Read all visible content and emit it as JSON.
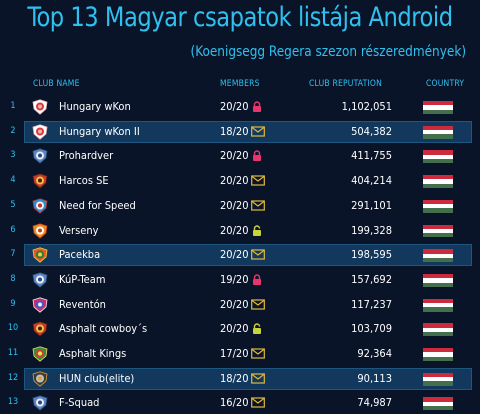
{
  "title": "Top 13 Magyar csapatok listája Android",
  "subtitle": "(Koenigsegg Regera szezon részeredmények)",
  "headers": {
    "club": "CLUB NAME",
    "members": "MEMBERS",
    "reputation": "CLUB REPUTATION",
    "country": "COUNTRY"
  },
  "colors": {
    "accent": "#2fc0f0",
    "background": "#0a1428",
    "highlight_row": "#12385e",
    "lock": "#e8356b",
    "lock_open": "#c8d43a",
    "invite": "#e2b93b",
    "flag_red": "#cd2a3e",
    "flag_white": "#ffffff",
    "flag_green": "#436f4d"
  },
  "rows": [
    {
      "rank": "1",
      "name": "Hungary wKon",
      "members": "20/20",
      "access": "lock-icon",
      "reputation": "1,102,051",
      "highlight": false,
      "logo": "club-logo-red"
    },
    {
      "rank": "2",
      "name": "Hungary wKon II",
      "members": "18/20",
      "access": "envelope-icon",
      "reputation": "504,382",
      "highlight": true,
      "logo": "club-logo-red"
    },
    {
      "rank": "3",
      "name": "Prohardver",
      "members": "20/20",
      "access": "lock-icon",
      "reputation": "411,755",
      "highlight": false,
      "logo": "club-logo-wolf"
    },
    {
      "rank": "4",
      "name": "Harcos SE",
      "members": "20/20",
      "access": "envelope-icon",
      "reputation": "404,214",
      "highlight": false,
      "logo": "club-logo-skull"
    },
    {
      "rank": "5",
      "name": "Need for Speed",
      "members": "20/20",
      "access": "envelope-icon",
      "reputation": "291,101",
      "highlight": false,
      "logo": "club-logo-shield"
    },
    {
      "rank": "6",
      "name": "Verseny",
      "members": "20/20",
      "access": "lock-open-icon",
      "reputation": "199,328",
      "highlight": false,
      "logo": "club-logo-flag"
    },
    {
      "rank": "7",
      "name": "Pacekba",
      "members": "20/20",
      "access": "envelope-icon",
      "reputation": "198,595",
      "highlight": true,
      "logo": "club-logo-fire"
    },
    {
      "rank": "8",
      "name": "KúP-Team",
      "members": "19/20",
      "access": "lock-icon",
      "reputation": "157,692",
      "highlight": false,
      "logo": "club-logo-wolf"
    },
    {
      "rank": "9",
      "name": "Reventón",
      "members": "20/20",
      "access": "envelope-icon",
      "reputation": "117,237",
      "highlight": false,
      "logo": "club-logo-speed"
    },
    {
      "rank": "10",
      "name": "Asphalt cowboy´s",
      "members": "20/20",
      "access": "lock-open-icon",
      "reputation": "103,709",
      "highlight": false,
      "logo": "club-logo-skull"
    },
    {
      "rank": "11",
      "name": "Asphalt Kings",
      "members": "17/20",
      "access": "envelope-icon",
      "reputation": "92,364",
      "highlight": false,
      "logo": "club-logo-crown"
    },
    {
      "rank": "12",
      "name": "HUN club(elite)",
      "members": "18/20",
      "access": "envelope-icon",
      "reputation": "90,113",
      "highlight": true,
      "logo": "club-logo-dark"
    },
    {
      "rank": "13",
      "name": "F-Squad",
      "members": "16/20",
      "access": "envelope-icon",
      "reputation": "74,987",
      "highlight": false,
      "logo": "club-logo-wolf"
    }
  ]
}
